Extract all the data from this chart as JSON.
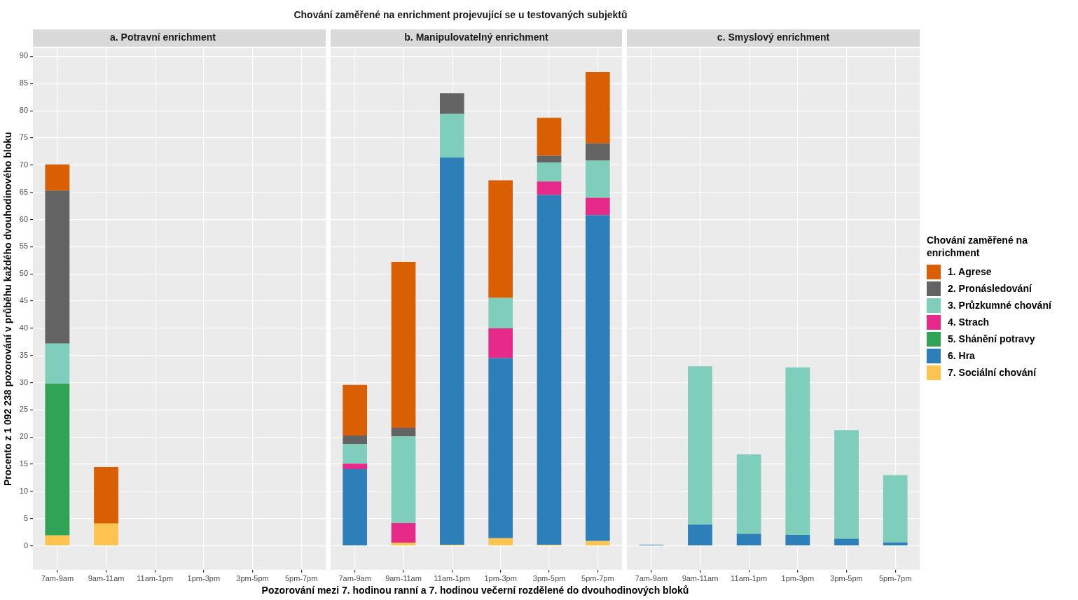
{
  "chart_data": [
    {
      "type": "bar",
      "title": "a. Potravní enrichment",
      "ylabel": "Procento z 1 092 238 pozorování v průběhu každého dvouhodinového bloku",
      "categories": [
        "7am-9am",
        "9am-11am",
        "11am-1pm",
        "1pm-3pm",
        "3pm-5pm",
        "5pm-7pm"
      ],
      "stacked": true,
      "grid": true,
      "ylim": [
        -4.4,
        91.5
      ],
      "yticks": [
        0,
        5,
        10,
        15,
        20,
        25,
        30,
        35,
        40,
        45,
        50,
        55,
        60,
        65,
        70,
        75,
        80,
        85,
        90
      ],
      "series": [
        {
          "color": "#fec44f",
          "values": [
            1.9,
            4.1,
            null,
            null,
            null,
            null
          ]
        },
        {
          "color": "#31a354",
          "values": [
            27.9,
            null,
            null,
            null,
            null,
            null
          ]
        },
        {
          "color": "#7fcdbb",
          "values": [
            7.4,
            null,
            null,
            null,
            null,
            null
          ]
        },
        {
          "color": "#636363",
          "values": [
            28.1,
            null,
            null,
            null,
            null,
            null
          ]
        },
        {
          "color": "#d95f02",
          "values": [
            4.8,
            10.4,
            null,
            null,
            null,
            null
          ]
        }
      ]
    },
    {
      "type": "bar",
      "title": "b. Manipulovatelný enrichment",
      "xlabel": "Pozorování mezi 7. hodinou ranní a 7. hodinou večerní rozdělené do dvouhodinových bloků",
      "annotations": [
        "Chování zaměřené na enrichment projevující se u testovaných subjektů"
      ],
      "categories": [
        "7am-9am",
        "9am-11am",
        "11am-1pm",
        "1pm-3pm",
        "3pm-5pm",
        "5pm-7pm"
      ],
      "stacked": true,
      "grid": true,
      "tick_labels": "x",
      "ylim": [
        -4.4,
        91.5
      ],
      "yticks": [
        0,
        5,
        10,
        15,
        20,
        25,
        30,
        35,
        40,
        45,
        50,
        55,
        60,
        65,
        70,
        75,
        80,
        85,
        90
      ],
      "series": [
        {
          "color": "#fec44f",
          "values": [
            null,
            0.6,
            0.2,
            1.4,
            0.2,
            0.9
          ]
        },
        {
          "color": "#2c7fb8",
          "values": [
            14.1,
            null,
            71.2,
            33.1,
            64.3,
            59.9
          ]
        },
        {
          "color": "#e7298a",
          "values": [
            1.0,
            3.6,
            null,
            5.5,
            2.5,
            3.2
          ]
        },
        {
          "color": "#7fcdbb",
          "values": [
            3.6,
            15.9,
            8.0,
            5.6,
            3.5,
            6.8
          ]
        },
        {
          "color": "#636363",
          "values": [
            1.6,
            1.6,
            3.8,
            null,
            1.2,
            3.2
          ]
        },
        {
          "color": "#d95f02",
          "values": [
            9.3,
            30.5,
            null,
            21.6,
            7.0,
            13.1
          ]
        }
      ]
    },
    {
      "type": "bar",
      "title": "c. Smyslový enrichment",
      "legend": "right",
      "legend_title": "Chování zaměřené na enrichment",
      "categories": [
        "7am-9am",
        "9am-11am",
        "11am-1pm",
        "1pm-3pm",
        "3pm-5pm",
        "5pm-7pm"
      ],
      "stacked": true,
      "grid": true,
      "tick_labels": "x",
      "ylim": [
        -4.4,
        91.5
      ],
      "yticks": [
        0,
        5,
        10,
        15,
        20,
        25,
        30,
        35,
        40,
        45,
        50,
        55,
        60,
        65,
        70,
        75,
        80,
        85,
        90
      ],
      "series": [
        {
          "name": "7. Sociální chování",
          "color": "#fec44f",
          "values": [
            null,
            null,
            null,
            null,
            null,
            null
          ]
        },
        {
          "name": "6. Hra",
          "color": "#2c7fb8",
          "values": [
            0.2,
            3.9,
            2.2,
            2.0,
            1.3,
            0.6
          ]
        },
        {
          "name": "5. Shánění potravy",
          "color": "#31a354",
          "values": [
            null,
            null,
            null,
            null,
            null,
            null
          ]
        },
        {
          "name": "4. Strach",
          "color": "#e7298a",
          "values": [
            null,
            null,
            null,
            null,
            null,
            null
          ]
        },
        {
          "name": "3. Průzkumné chování",
          "color": "#7fcdbb",
          "values": [
            null,
            29.1,
            14.6,
            30.8,
            20.0,
            12.4
          ]
        },
        {
          "name": "2. Pronásledování",
          "color": "#636363",
          "values": [
            null,
            null,
            null,
            null,
            null,
            null
          ]
        },
        {
          "name": "1. Agrese",
          "color": "#d95f02",
          "values": [
            null,
            null,
            null,
            null,
            null,
            null
          ]
        }
      ]
    }
  ]
}
